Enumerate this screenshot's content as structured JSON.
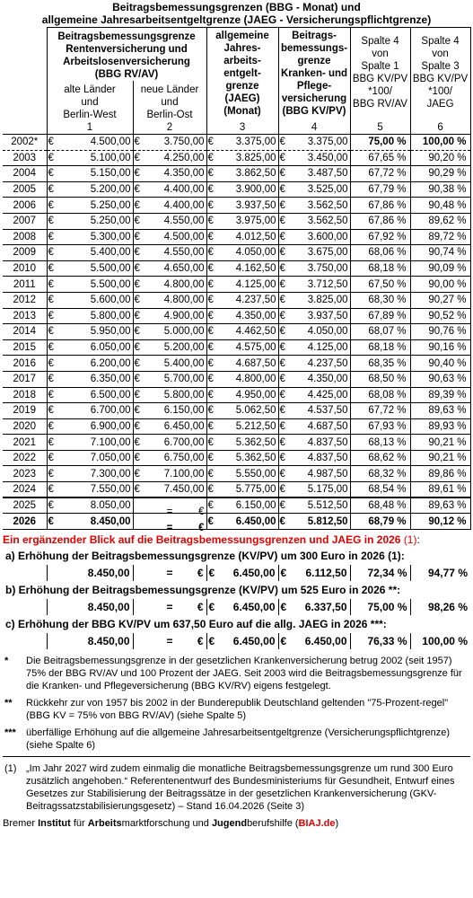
{
  "title": {
    "line1": "Beitragsbemessungsgrenzen (BBG - Monat) und",
    "line2": "allgemeine Jahresarbeitsentgeltgrenze (JAEG - Versicherungspflichtgrenze)"
  },
  "header": {
    "rv_group": [
      "Beitragsbemessungsgrenze",
      "Rentenversicherung und",
      "Arbeitslosenversicherung",
      "(BBG RV/AV)"
    ],
    "col1": [
      "alte Länder",
      "und",
      "Berlin-West"
    ],
    "col2": [
      "neue Länder",
      "und",
      "Berlin-Ost"
    ],
    "col3": [
      "allgemeine",
      "Jahres-",
      "arbeits-",
      "entgelt-",
      "grenze",
      "(JAEG)",
      "(Monat)"
    ],
    "col4": [
      "Beitrags-",
      "bemessungs-",
      "grenze",
      "Kranken- und",
      "Pflege-",
      "versicherung",
      "(BBG KV/PV)"
    ],
    "col5": [
      "Spalte 4",
      "von",
      "Spalte 1",
      "BBG KV/PV",
      "*100/",
      "BBG RV/AV"
    ],
    "col6": [
      "Spalte 4",
      "von",
      "Spalte 3",
      "BBG KV/PV",
      "*100/",
      "JAEG"
    ],
    "nums": [
      "1",
      "2",
      "3",
      "4",
      "5",
      "6"
    ]
  },
  "euro_sign": "€",
  "rows": [
    {
      "year": "2002*",
      "c1": "4.500,00",
      "c2": "3.750,00",
      "c3": "3.375,00",
      "c4": "3.375,00",
      "c5": "75,00 %",
      "c6": "100,00 %"
    },
    {
      "year": "2003",
      "c1": "5.100,00",
      "c2": "4.250,00",
      "c3": "3.825,00",
      "c4": "3.450,00",
      "c5": "67,65 %",
      "c6": "90,20 %"
    },
    {
      "year": "2004",
      "c1": "5.150,00",
      "c2": "4.350,00",
      "c3": "3.862,50",
      "c4": "3.487,50",
      "c5": "67,72 %",
      "c6": "90,29 %"
    },
    {
      "year": "2005",
      "c1": "5.200,00",
      "c2": "4.400,00",
      "c3": "3.900,00",
      "c4": "3.525,00",
      "c5": "67,79 %",
      "c6": "90,38 %"
    },
    {
      "year": "2006",
      "c1": "5.250,00",
      "c2": "4.400,00",
      "c3": "3.937,50",
      "c4": "3.562,50",
      "c5": "67,86 %",
      "c6": "90,48 %"
    },
    {
      "year": "2007",
      "c1": "5.250,00",
      "c2": "4.550,00",
      "c3": "3.975,00",
      "c4": "3.562,50",
      "c5": "67,86 %",
      "c6": "89,62 %"
    },
    {
      "year": "2008",
      "c1": "5.300,00",
      "c2": "4.500,00",
      "c3": "4.012,50",
      "c4": "3.600,00",
      "c5": "67,92 %",
      "c6": "89,72 %"
    },
    {
      "year": "2009",
      "c1": "5.400,00",
      "c2": "4.550,00",
      "c3": "4.050,00",
      "c4": "3.675,00",
      "c5": "68,06 %",
      "c6": "90,74 %"
    },
    {
      "year": "2010",
      "c1": "5.500,00",
      "c2": "4.650,00",
      "c3": "4.162,50",
      "c4": "3.750,00",
      "c5": "68,18 %",
      "c6": "90,09 %"
    },
    {
      "year": "2011",
      "c1": "5.500,00",
      "c2": "4.800,00",
      "c3": "4.125,00",
      "c4": "3.712,50",
      "c5": "67,50 %",
      "c6": "90,00 %"
    },
    {
      "year": "2012",
      "c1": "5.600,00",
      "c2": "4.800,00",
      "c3": "4.237,50",
      "c4": "3.825,00",
      "c5": "68,30 %",
      "c6": "90,27 %"
    },
    {
      "year": "2013",
      "c1": "5.800,00",
      "c2": "4.900,00",
      "c3": "4.350,00",
      "c4": "3.937,50",
      "c5": "67,89 %",
      "c6": "90,52 %"
    },
    {
      "year": "2014",
      "c1": "5.950,00",
      "c2": "5.000,00",
      "c3": "4.462,50",
      "c4": "4.050,00",
      "c5": "68,07 %",
      "c6": "90,76 %"
    },
    {
      "year": "2015",
      "c1": "6.050,00",
      "c2": "5.200,00",
      "c3": "4.575,00",
      "c4": "4.125,00",
      "c5": "68,18 %",
      "c6": "90,16 %"
    },
    {
      "year": "2016",
      "c1": "6.200,00",
      "c2": "5.400,00",
      "c3": "4.687,50",
      "c4": "4.237,50",
      "c5": "68,35 %",
      "c6": "90,40 %"
    },
    {
      "year": "2017",
      "c1": "6.350,00",
      "c2": "5.700,00",
      "c3": "4.800,00",
      "c4": "4.350,00",
      "c5": "68,50 %",
      "c6": "90,63 %"
    },
    {
      "year": "2018",
      "c1": "6.500,00",
      "c2": "5.800,00",
      "c3": "4.950,00",
      "c4": "4.425,00",
      "c5": "68,08 %",
      "c6": "89,39 %"
    },
    {
      "year": "2019",
      "c1": "6.700,00",
      "c2": "6.150,00",
      "c3": "5.062,50",
      "c4": "4.537,50",
      "c5": "67,72 %",
      "c6": "89,63 %"
    },
    {
      "year": "2020",
      "c1": "6.900,00",
      "c2": "6.450,00",
      "c3": "5.212,50",
      "c4": "4.687,50",
      "c5": "67,93 %",
      "c6": "89,93 %"
    },
    {
      "year": "2021",
      "c1": "7.100,00",
      "c2": "6.700,00",
      "c3": "5.362,50",
      "c4": "4.837,50",
      "c5": "68,13 %",
      "c6": "90,21 %"
    },
    {
      "year": "2022",
      "c1": "7.050,00",
      "c2": "6.750,00",
      "c3": "5.362,50",
      "c4": "4.837,50",
      "c5": "68,62 %",
      "c6": "90,21 %"
    },
    {
      "year": "2023",
      "c1": "7.300,00",
      "c2": "7.100,00",
      "c3": "5.550,00",
      "c4": "4.987,50",
      "c5": "68,32 %",
      "c6": "89,86 %"
    },
    {
      "year": "2024",
      "c1": "7.550,00",
      "c2": "7.450,00",
      "c3": "5.775,00",
      "c4": "5.175,00",
      "c5": "68,54 %",
      "c6": "89,61 %"
    },
    {
      "year": "2025",
      "c1": "8.050,00",
      "c2": "=",
      "c3": "6.150,00",
      "c4": "5.512,50",
      "c5": "68,48 %",
      "c6": "89,63 %"
    },
    {
      "year": "2026",
      "c1": "8.450,00",
      "c2": "=",
      "c3": "6.450,00",
      "c4": "5.812,50",
      "c5": "68,79 %",
      "c6": "90,12 %"
    }
  ],
  "extension": {
    "title": "Ein ergänzender Blick auf die Beitragsbemessungsgrenzen und JAEG in 2026",
    "title_ref": "(1)",
    "title_colon": ":",
    "scenarios": [
      {
        "heading": "a) Erhöhung der Beitragsbemessungsgrenze (KV/PV) um 300 Euro in 2026 (1):",
        "c1": "8.450,00",
        "c2": "=",
        "c3": "6.450,00",
        "c4": "6.112,50",
        "c5": "72,34 %",
        "c6": "94,77 %"
      },
      {
        "heading": "b) Erhöhung der Beitragsbemessungsgrenze (KV/PV) um 525 Euro in 2026 **:",
        "c1": "8.450,00",
        "c2": "=",
        "c3": "6.450,00",
        "c4": "6.337,50",
        "c5": "75,00 %",
        "c6": "98,26 %"
      },
      {
        "heading": "c) Erhöhung der BBG KV/PV um 637,50 Euro auf die allg. JAEG in 2026 ***:",
        "c1": "8.450,00",
        "c2": "=",
        "c3": "6.450,00",
        "c4": "6.450,00",
        "c5": "76,33 %",
        "c6": "100,00 %"
      }
    ]
  },
  "notes": [
    {
      "mark": "*",
      "text": "Die Beitragsbemessungsgrenze in der gesetzlichen Krankenversicherung betrug 2002 (seit 1957) 75% der BBG RV/AV und 100 Prozent der JAEG. Seit 2003 wird die Beitragsbemessungsgrenze für die Kranken- und Pflegeversicherung (BBG KV/RV) eigens festgelegt."
    },
    {
      "mark": "**",
      "text": "Rückkehr zur von 1957 bis 2002 in der Bunderepublik Deutschland geltenden \"75-Prozent-regel\" (BBG KV = 75% von BBG RV/AV) (siehe Spalte 5)"
    },
    {
      "mark": "***",
      "text": "überfällige Erhöhung auf die allgemeine Jahresarbeitsentgeltgrenze (Versicherungspflichtgrenze) (siehe Spalte 6)"
    }
  ],
  "source_note": {
    "mark": "(1)",
    "text": "„Im Jahr 2027 wird zudem einmalig die monatliche Beitragsbemessungsgrenze um rund 300 Euro zusätzlich angehoben.“ Referentenentwurf des Bundesministeriums für Gesundheit, Entwurf eines Gesetzes zur Stabilisierung der Beitragssätze in der gesetzlichen Krankenversicherung (GKV-Beitragssatzstabilisierungsgesetz) – Stand 16.04.2026 (Seite 3)"
  },
  "footer": {
    "p1": "Bremer ",
    "b1": "Institut",
    "p2": " für ",
    "b2": "Arbeits",
    "p3": "marktforschung und ",
    "b3": "Jugend",
    "p4": "berufshilfe (",
    "red": "BIAJ.de",
    "p5": ")"
  }
}
